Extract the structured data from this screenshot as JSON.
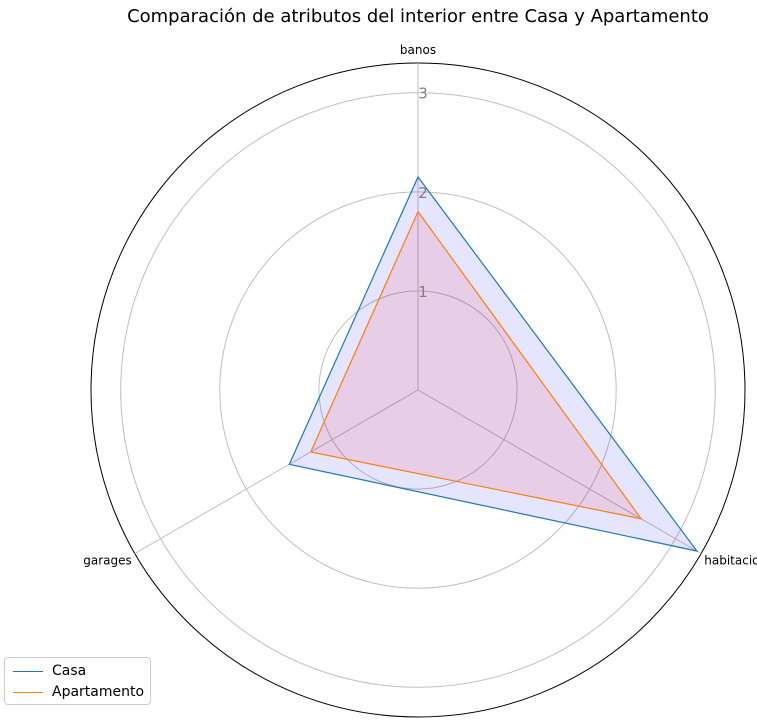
{
  "chart_data": {
    "type": "radar",
    "title": "Comparación de atributos del interior entre Casa y Apartamento",
    "categories": [
      "banos",
      "habitaciones",
      "garages"
    ],
    "rticks": [
      "1",
      "2",
      "3"
    ],
    "rlim": [
      0,
      3.3
    ],
    "grid": true,
    "legend": "lower-left",
    "series": [
      {
        "name": "Casa",
        "values": [
          2.15,
          3.25,
          1.5
        ],
        "line_color": "#1f77b4",
        "fill_color": "#0000ff",
        "fill_opacity": 0.1
      },
      {
        "name": "Apartamento",
        "values": [
          1.8,
          2.6,
          1.25
        ],
        "line_color": "#ff7f0e",
        "fill_color": "#ff0000",
        "fill_opacity": 0.1
      }
    ]
  }
}
